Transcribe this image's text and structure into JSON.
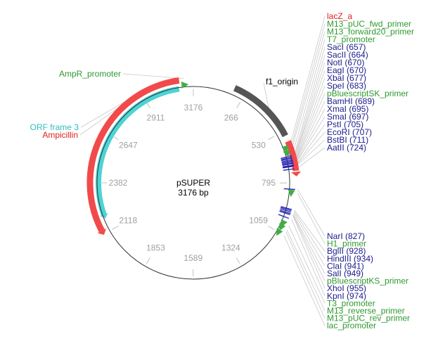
{
  "plasmid": {
    "name": "pSUPER",
    "size_label": "3176 bp",
    "length": 3176
  },
  "colors": {
    "backbone": "#333333",
    "tick_text": "#a0a0a0",
    "enzyme": "#1a1a8c",
    "feature_green": "#2e9a2e",
    "lacZ": "#e02020",
    "ampicillin": "#e02020",
    "orf": "#2bbfbf",
    "f1": "#555555",
    "arc_red": "#f24a4a",
    "arc_cyan": "#4dd3d3",
    "arc_gray": "#555555",
    "tick_blue": "#2020b0",
    "leader": "#c8c8c8"
  },
  "ticks": [
    {
      "label": "266",
      "pos": 266
    },
    {
      "label": "530",
      "pos": 530
    },
    {
      "label": "795",
      "pos": 795
    },
    {
      "label": "1059",
      "pos": 1059
    },
    {
      "label": "1324",
      "pos": 1324
    },
    {
      "label": "1589",
      "pos": 1589
    },
    {
      "label": "1853",
      "pos": 1853
    },
    {
      "label": "2118",
      "pos": 2118
    },
    {
      "label": "2382",
      "pos": 2382
    },
    {
      "label": "2647",
      "pos": 2647
    },
    {
      "label": "2911",
      "pos": 2911
    },
    {
      "label": "3176",
      "pos": 0
    }
  ],
  "arcs": [
    {
      "name": "f1-origin-arc",
      "start": 208,
      "end": 555,
      "ring": "outer",
      "color_key": "arc_gray"
    },
    {
      "name": "lacz-arc",
      "start": 585,
      "end": 735,
      "ring": "outer",
      "color_key": "arc_red"
    },
    {
      "name": "ampicillin-arc",
      "start": 2138,
      "end": 3106,
      "ring": "outer",
      "color_key": "arc_red"
    },
    {
      "name": "orf-frame3-arc",
      "start": 2210,
      "end": 3100,
      "ring": "inner",
      "color_key": "arc_cyan"
    }
  ],
  "sites": [
    657,
    664,
    670,
    677,
    683,
    689,
    695,
    697,
    705,
    707,
    711,
    724,
    827,
    928,
    934,
    941,
    949,
    955,
    974
  ],
  "markers": [
    {
      "name": "ampr-promoter-marker",
      "pos": 3130
    },
    {
      "name": "t7-promoter-marker",
      "pos": 640
    },
    {
      "name": "m13-fwd-marker",
      "pos": 615
    },
    {
      "name": "h1-primer-marker",
      "pos": 845
    },
    {
      "name": "t3-promoter-marker",
      "pos": 1008
    },
    {
      "name": "m13-rev-marker",
      "pos": 1030
    },
    {
      "name": "lac-promoter-marker",
      "pos": 1060
    }
  ],
  "left_labels": [
    {
      "text": "AmpR_promoter",
      "color_key": "feature_green",
      "pos": 3130
    },
    {
      "text": "ORF frame 3",
      "color_key": "orf",
      "pos": 2880
    },
    {
      "text": "Ampicillin",
      "color_key": "ampicillin",
      "pos": 2870
    }
  ],
  "f1_label": {
    "text": "f1_origin",
    "pos": 410
  },
  "right_top_labels": [
    {
      "text": "lacZ_a",
      "color_key": "lacZ",
      "pos": 600
    },
    {
      "text": "M13_pUC_fwd_primer",
      "color_key": "feature_green",
      "pos": 612
    },
    {
      "text": "M13_forward20_primer",
      "color_key": "feature_green",
      "pos": 622
    },
    {
      "text": "T7_promoter",
      "color_key": "feature_green",
      "pos": 640
    },
    {
      "text": "SacI (657)",
      "color_key": "enzyme",
      "pos": 657
    },
    {
      "text": "SacII (664)",
      "color_key": "enzyme",
      "pos": 664
    },
    {
      "text": "NotI (670)",
      "color_key": "enzyme",
      "pos": 670
    },
    {
      "text": "EagI (670)",
      "color_key": "enzyme",
      "pos": 670
    },
    {
      "text": "XbaI (677)",
      "color_key": "enzyme",
      "pos": 677
    },
    {
      "text": "SpeI (683)",
      "color_key": "enzyme",
      "pos": 683
    },
    {
      "text": "pBluescriptSK_primer",
      "color_key": "feature_green",
      "pos": 686
    },
    {
      "text": "BamHI (689)",
      "color_key": "enzyme",
      "pos": 689
    },
    {
      "text": "XmaI (695)",
      "color_key": "enzyme",
      "pos": 695
    },
    {
      "text": "SmaI (697)",
      "color_key": "enzyme",
      "pos": 697
    },
    {
      "text": "PstI (705)",
      "color_key": "enzyme",
      "pos": 705
    },
    {
      "text": "EcoRI (707)",
      "color_key": "enzyme",
      "pos": 707
    },
    {
      "text": "BstBI (711)",
      "color_key": "enzyme",
      "pos": 711
    },
    {
      "text": "AatII (724)",
      "color_key": "enzyme",
      "pos": 724
    }
  ],
  "right_bottom_labels": [
    {
      "text": "NarI (827)",
      "color_key": "enzyme",
      "pos": 827
    },
    {
      "text": "H1_primer",
      "color_key": "feature_green",
      "pos": 845
    },
    {
      "text": "BglII (928)",
      "color_key": "enzyme",
      "pos": 928
    },
    {
      "text": "HindIII (934)",
      "color_key": "enzyme",
      "pos": 934
    },
    {
      "text": "ClaI (941)",
      "color_key": "enzyme",
      "pos": 941
    },
    {
      "text": "SalI (949)",
      "color_key": "enzyme",
      "pos": 949
    },
    {
      "text": "pBluescriptKS_primer",
      "color_key": "feature_green",
      "pos": 952
    },
    {
      "text": "XhoI (955)",
      "color_key": "enzyme",
      "pos": 955
    },
    {
      "text": "KpnI (974)",
      "color_key": "enzyme",
      "pos": 974
    },
    {
      "text": "T3_promoter",
      "color_key": "feature_green",
      "pos": 1008
    },
    {
      "text": "M13_reverse_primer",
      "color_key": "feature_green",
      "pos": 1030
    },
    {
      "text": "M13_pUC_rev_primer",
      "color_key": "feature_green",
      "pos": 1040
    },
    {
      "text": "lac_promoter",
      "color_key": "feature_green",
      "pos": 1060
    }
  ]
}
